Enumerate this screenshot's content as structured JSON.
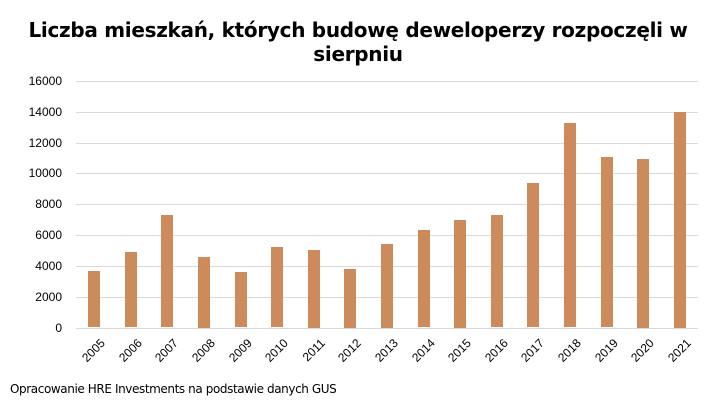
{
  "chart_data": {
    "type": "bar",
    "title": "Liczba mieszkań, których budowę deweloperzy rozpoczęli w sierpniu",
    "xlabel": "",
    "ylabel": "",
    "categories": [
      "2005",
      "2006",
      "2007",
      "2008",
      "2009",
      "2010",
      "2011",
      "2012",
      "2013",
      "2014",
      "2015",
      "2016",
      "2017",
      "2018",
      "2019",
      "2020",
      "2021"
    ],
    "values": [
      3650,
      4900,
      7300,
      4600,
      3600,
      5200,
      5050,
      3800,
      5450,
      6300,
      7000,
      7300,
      9350,
      13250,
      11050,
      10950,
      14000
    ],
    "ylim": [
      0,
      16000
    ],
    "yticks": [
      "0",
      "2000",
      "4000",
      "6000",
      "8000",
      "10000",
      "12000",
      "14000",
      "16000"
    ],
    "grid": true,
    "legend": null,
    "bar_color": "#cd8b5c",
    "grid_color": "#d9d9d9"
  },
  "source_note": "Opracowanie HRE Investments na podstawie danych GUS"
}
